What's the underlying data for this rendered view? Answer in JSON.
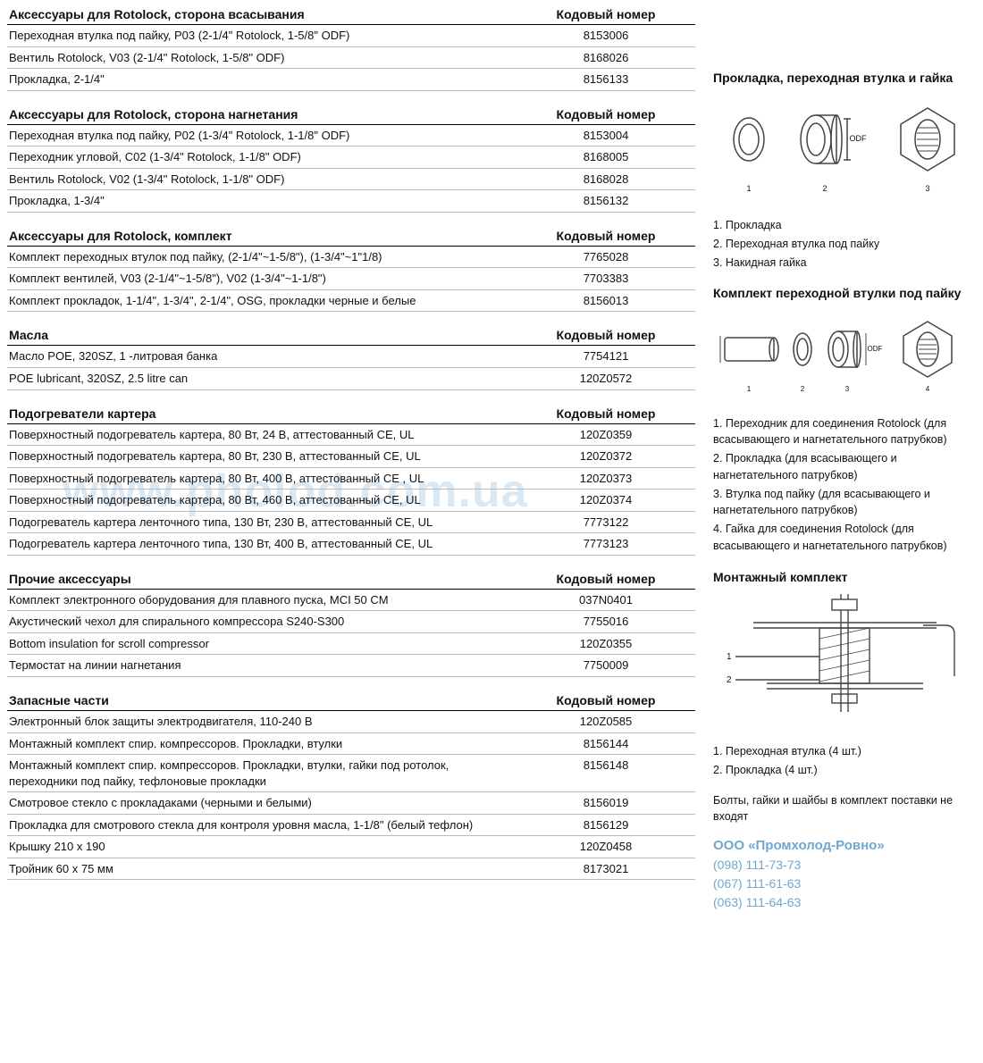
{
  "code_header": "Кодовый номер",
  "sections": [
    {
      "title": "Аксессуары для Rotolock, сторона всасывания",
      "rows": [
        [
          "Переходная втулка под пайку, P03 (2-1/4\" Rotolock, 1-5/8\" ODF)",
          "8153006"
        ],
        [
          "Вентиль Rotolock, V03 (2-1/4\" Rotolock, 1-5/8\" ODF)",
          "8168026"
        ],
        [
          "Прокладка, 2-1/4\"",
          "8156133"
        ]
      ]
    },
    {
      "title": "Аксессуары для Rotolock, сторона нагнетания",
      "rows": [
        [
          "Переходная втулка под пайку, P02 (1-3/4\" Rotolock, 1-1/8\" ODF)",
          "8153004"
        ],
        [
          "Переходник угловой, C02 (1-3/4\" Rotolock, 1-1/8\" ODF)",
          "8168005"
        ],
        [
          "Вентиль Rotolock, V02 (1-3/4\" Rotolock, 1-1/8\" ODF)",
          "8168028"
        ],
        [
          "Прокладка, 1-3/4\"",
          "8156132"
        ]
      ]
    },
    {
      "title": "Аксессуары для Rotolock, комплект",
      "rows": [
        [
          "Комплект переходных втулок под пайку, (2-1/4\"~1-5/8\"), (1-3/4\"~1\"1/8)",
          "7765028"
        ],
        [
          "Комплект вентилей, V03 (2-1/4\"~1-5/8\"), V02 (1-3/4\"~1-1/8\")",
          "7703383"
        ],
        [
          "Комплект прокладок, 1-1/4\", 1-3/4\", 2-1/4\", OSG, прокладки черные и белые",
          "8156013"
        ]
      ]
    },
    {
      "title": "Масла",
      "rows": [
        [
          "Масло POE, 320SZ, 1 -литровая банка",
          "7754121"
        ],
        [
          "POE lubricant, 320SZ, 2.5 litre can",
          "120Z0572"
        ]
      ]
    },
    {
      "title": "Подогреватели картера",
      "rows": [
        [
          "Поверхностный подогреватель картера, 80 Вт, 24 В, аттестованный CE, UL",
          "120Z0359"
        ],
        [
          "Поверхностный подогреватель картера, 80 Вт, 230 В, аттестованный CE, UL",
          "120Z0372"
        ],
        [
          "Поверхностный подогреватель картера, 80 Вт, 400 В, аттестованный CE , UL",
          "120Z0373"
        ],
        [
          "Поверхностный подогреватель картера, 80 Вт, 460 В, аттестованный CE, UL",
          "120Z0374"
        ],
        [
          "Подогреватель картера ленточного типа, 130 Вт, 230 В, аттестованный CE, UL",
          "7773122"
        ],
        [
          "Подогреватель картера ленточного типа, 130 Вт, 400 В, аттестованный CE, UL",
          "7773123"
        ]
      ]
    },
    {
      "title": "Прочие аксессуары",
      "rows": [
        [
          "Комплект электронного оборудования для плавного пуска, MCI 50 CM",
          "037N0401"
        ],
        [
          "Акустический чехол для спирального компрессора S240-S300",
          "7755016"
        ],
        [
          "Bottom insulation for scroll compressor",
          "120Z0355"
        ],
        [
          "Термостат на линии нагнетания",
          "7750009"
        ]
      ]
    },
    {
      "title": "Запасные части",
      "rows": [
        [
          "Электронный блок защиты электродвигателя, 110-240 В",
          "120Z0585"
        ],
        [
          "Монтажный комплект спир. компрессоров. Прокладки, втулки",
          "8156144"
        ],
        [
          "Монтажный комплект спир. компрессоров. Прокладки, втулки, гайки под ротолок, переходники под пайку, тефлоновые прокладки",
          "8156148"
        ],
        [
          "Смотровое стекло с прокладаками (черными и белыми)",
          "8156019"
        ],
        [
          "Прокладка для смотрового стекла для контроля уровня масла, 1-1/8\" (белый тефлон)",
          "8156129"
        ],
        [
          "Крышку 210 x 190",
          "120Z0458"
        ],
        [
          "Тройник 60 x 75 мм",
          "8173021"
        ]
      ]
    }
  ],
  "sidebar": {
    "block1": {
      "title": "Прокладка, переходная втулка и гайка",
      "legend": [
        "1. Прокладка",
        "2. Переходная втулка под пайку",
        "3. Накидная гайка"
      ],
      "diagram_labels": [
        "1",
        "2",
        "3"
      ],
      "odf_label": "ODF"
    },
    "block2": {
      "title": "Комплект переходной втулки под пайку",
      "diagram_labels": [
        "1",
        "2",
        "3",
        "4"
      ],
      "odf_label": "ODF",
      "od_label": "OD",
      "legend": [
        "1. Переходник для соединения Rotolock (для всасывающего и нагнетательного патрубков)",
        "2. Прокладка (для всасывающего и нагнетательного патрубков)",
        "3. Втулка под пайку (для всасывающего и нагнетательного патрубков)",
        "4. Гайка для соединения Rotolock (для всасывающего и нагнетательного патрубков)"
      ]
    },
    "block3": {
      "title": "Монтажный комплект",
      "callouts": [
        "1",
        "2"
      ],
      "legend": [
        "1. Переходная втулка (4 шт.)",
        "2. Прокладка (4 шт.)"
      ],
      "note": "Болты, гайки и шайбы в комплект поставки не входят"
    }
  },
  "watermark": "www.pholod.com.ua",
  "footer": {
    "company": "ООО «Промхолод-Ровно»",
    "phones": [
      "(098) 111-73-73",
      "(067) 111-61-63",
      "(063) 111-64-63"
    ]
  },
  "colors": {
    "text": "#111111",
    "header_rule": "#000000",
    "row_rule": "#bbbbbb",
    "watermark": "#d6e6f3",
    "brand": "#6fa8cf",
    "diagram_stroke": "#444444"
  }
}
